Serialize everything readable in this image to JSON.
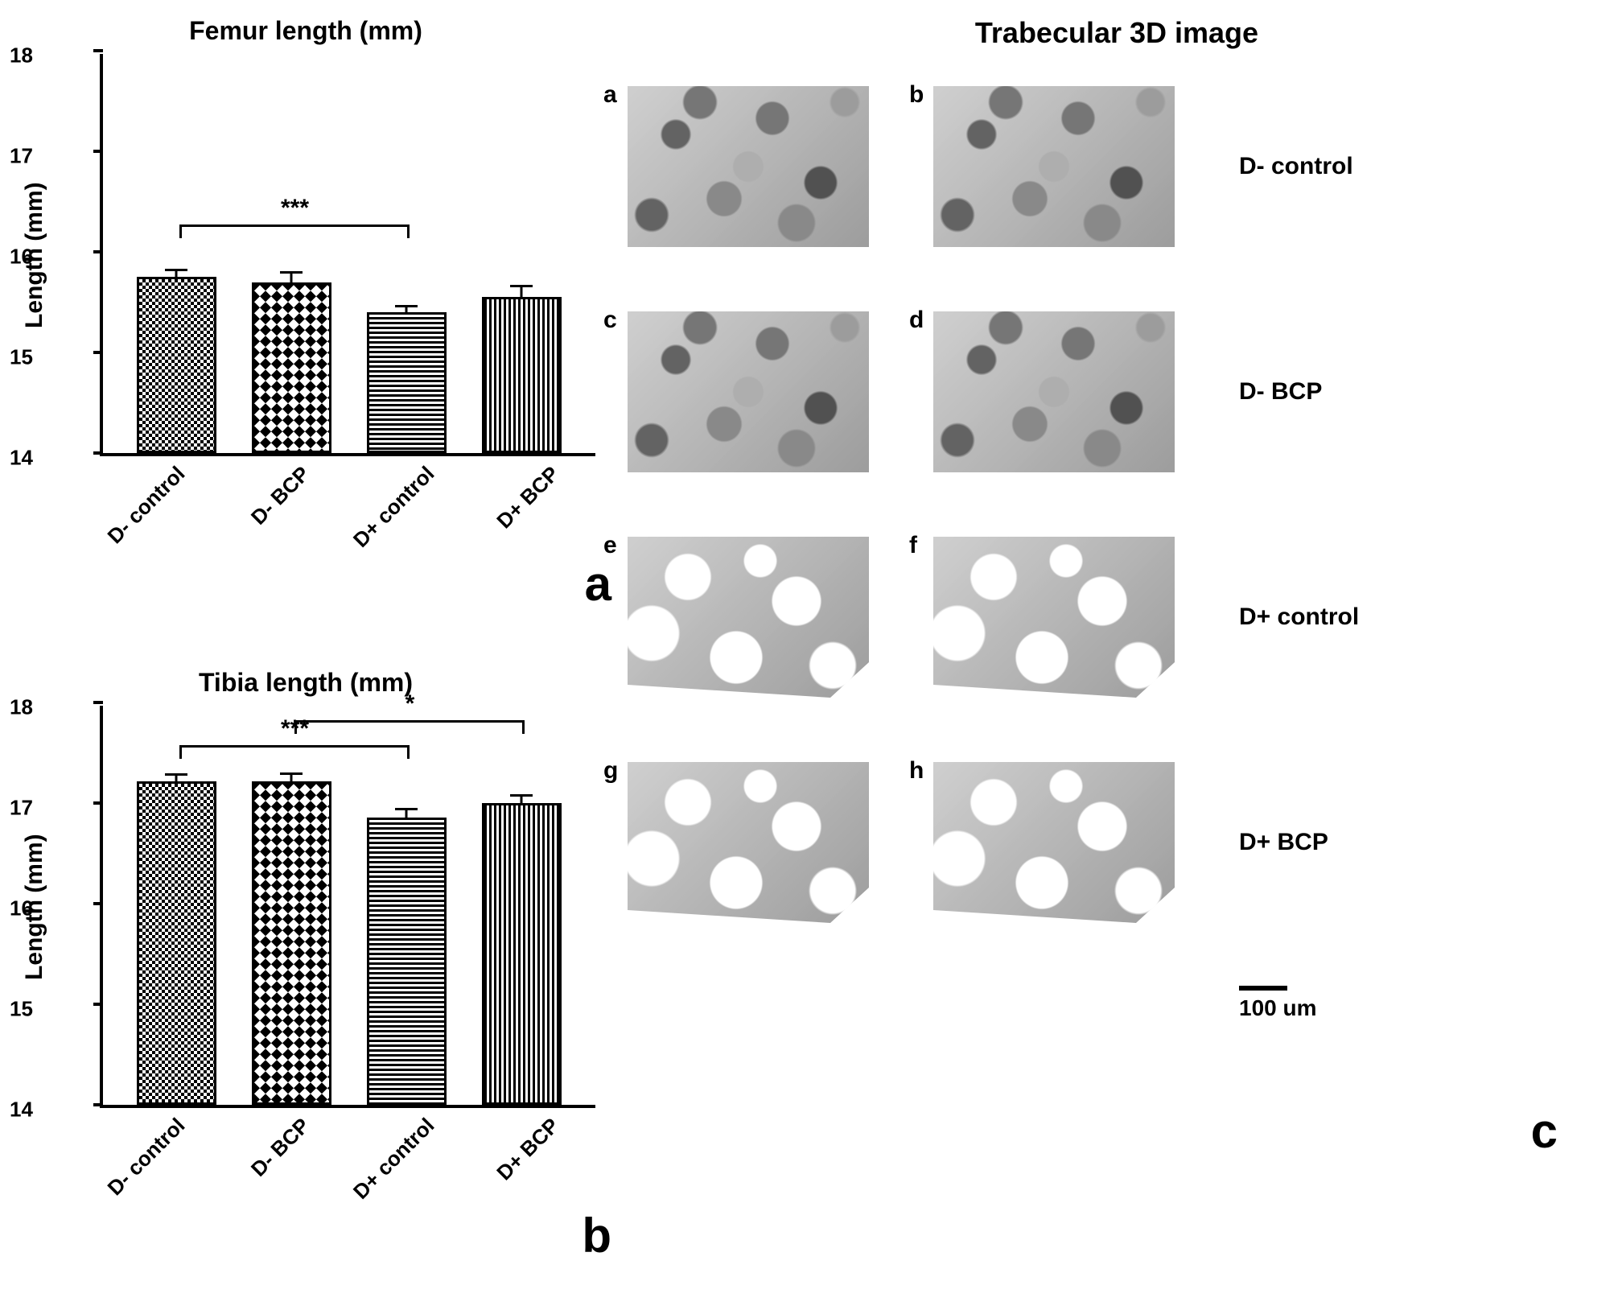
{
  "charts": {
    "femur": {
      "type": "bar",
      "title": "Femur length (mm)",
      "ylabel": "Length (mm)",
      "ylim": [
        14,
        18
      ],
      "ytick_step": 1,
      "yticks": [
        14,
        15,
        16,
        17,
        18
      ],
      "categories": [
        "D- control",
        "D- BCP",
        "D+ control",
        "D+ BCP"
      ],
      "values": [
        15.75,
        15.7,
        15.4,
        15.55
      ],
      "errors": [
        0.07,
        0.09,
        0.06,
        0.11
      ],
      "bar_patterns": [
        "pat-dense-cross",
        "pat-check",
        "pat-hstripe",
        "pat-vstripe"
      ],
      "significance": [
        {
          "from": 0,
          "to": 2,
          "label": "***",
          "y": 16.25
        }
      ],
      "panel_letter": "a",
      "title_fontsize": 32,
      "label_fontsize": 30,
      "tick_fontsize": 26,
      "axis_color": "#000000",
      "background_color": "#ffffff",
      "bar_border_width": 3
    },
    "tibia": {
      "type": "bar",
      "title": "Tibia length (mm)",
      "ylabel": "Length (mm)",
      "ylim": [
        14,
        18
      ],
      "ytick_step": 1,
      "yticks": [
        14,
        15,
        16,
        17,
        18
      ],
      "categories": [
        "D- control",
        "D- BCP",
        "D+ control",
        "D+ BCP"
      ],
      "values": [
        17.22,
        17.22,
        16.86,
        17.0
      ],
      "errors": [
        0.06,
        0.07,
        0.08,
        0.07
      ],
      "bar_patterns": [
        "pat-dense-cross",
        "pat-check",
        "pat-hstripe",
        "pat-vstripe"
      ],
      "significance": [
        {
          "from": 0,
          "to": 2,
          "label": "***",
          "y": 17.55
        },
        {
          "from": 1,
          "to": 3,
          "label": "*",
          "y": 17.8
        }
      ],
      "panel_letter": "b",
      "title_fontsize": 32,
      "label_fontsize": 30,
      "tick_fontsize": 26,
      "axis_color": "#000000",
      "background_color": "#ffffff",
      "bar_border_width": 3
    }
  },
  "trabecular": {
    "title": "Trabecular 3D image",
    "panel_letter": "c",
    "rows": [
      {
        "label": "D- control",
        "panels": [
          "a",
          "b"
        ],
        "sparse": false
      },
      {
        "label": "D- BCP",
        "panels": [
          "c",
          "d"
        ],
        "sparse": false
      },
      {
        "label": "D+ control",
        "panels": [
          "e",
          "f"
        ],
        "sparse": true
      },
      {
        "label": "D+ BCP",
        "panels": [
          "g",
          "h"
        ],
        "sparse": true
      }
    ],
    "scale_bar_label": "100 um",
    "title_fontsize": 36,
    "row_label_fontsize": 30
  }
}
